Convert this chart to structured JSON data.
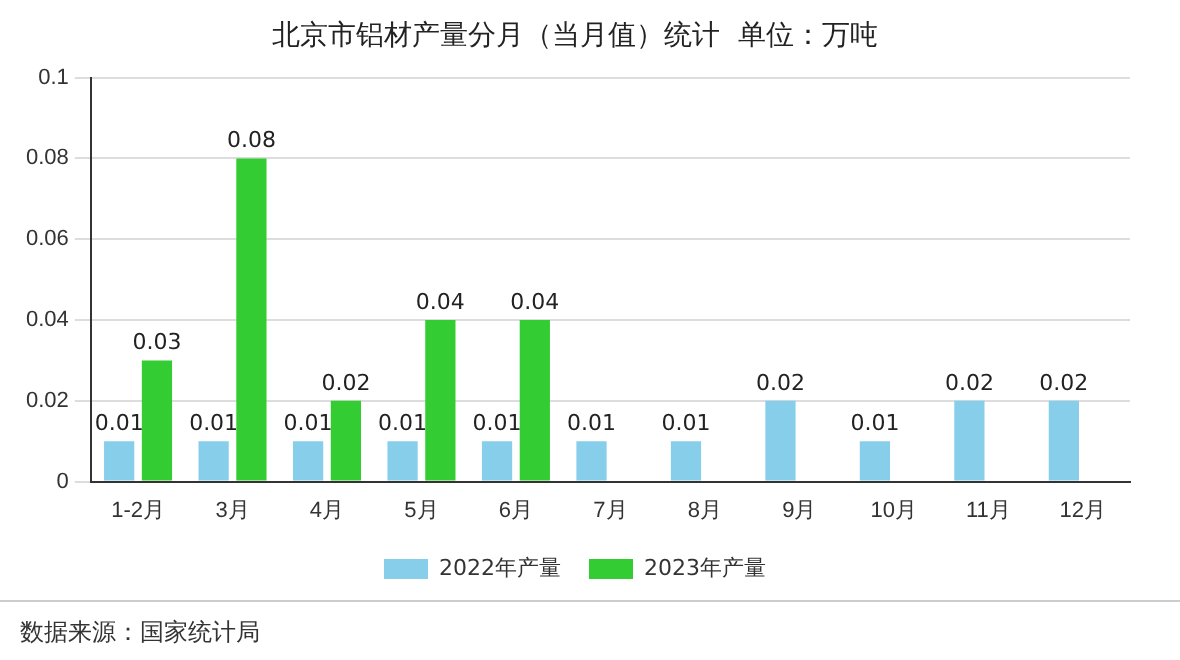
{
  "chart_data": {
    "type": "bar",
    "title": "北京市铝材产量分月（当月值）统计  单位：万吨",
    "categories": [
      "1-2月",
      "3月",
      "4月",
      "5月",
      "6月",
      "7月",
      "8月",
      "9月",
      "10月",
      "11月",
      "12月"
    ],
    "series": [
      {
        "name": "2022年产量",
        "color": "#87ceeb",
        "values": [
          0.01,
          0.01,
          0.01,
          0.01,
          0.01,
          0.01,
          0.01,
          0.02,
          0.01,
          0.02,
          0.02
        ]
      },
      {
        "name": "2023年产量",
        "color": "#33cc33",
        "values": [
          0.03,
          0.08,
          0.02,
          0.04,
          0.04,
          null,
          null,
          null,
          null,
          null,
          null
        ]
      }
    ],
    "ylim": [
      0,
      0.1
    ],
    "yticks": [
      0,
      0.02,
      0.04,
      0.06,
      0.08,
      0.1
    ],
    "grid": "y",
    "legend": "bottom",
    "data_labels": true,
    "annotations": [
      "数据来源：国家统计局"
    ]
  }
}
